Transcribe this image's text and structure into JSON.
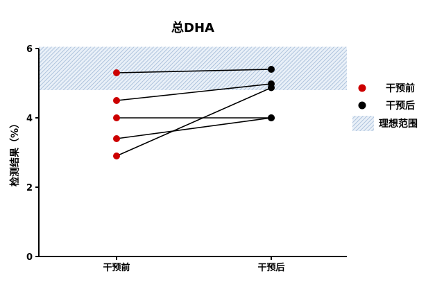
{
  "chart_data": {
    "type": "line",
    "title": "总DHA",
    "ylabel": "检测结果（%）",
    "xlabel": "",
    "categories": [
      "干预前",
      "干预后"
    ],
    "ylim": [
      0,
      6
    ],
    "yticks": [
      0,
      2,
      4,
      6
    ],
    "reference_band": {
      "label": "理想范围",
      "range": [
        4.8,
        6.05
      ],
      "color": "#9fb8d6"
    },
    "paired_values": [
      [
        5.3,
        5.4
      ],
      [
        4.5,
        4.98
      ],
      [
        4.0,
        4.0
      ],
      [
        3.4,
        4.0
      ],
      [
        2.9,
        4.87
      ]
    ],
    "series": [
      {
        "name": "干预前",
        "color": "#cc0000"
      },
      {
        "name": "干预后",
        "color": "#000000"
      }
    ],
    "legend": {
      "position": "right"
    },
    "grid": false
  }
}
